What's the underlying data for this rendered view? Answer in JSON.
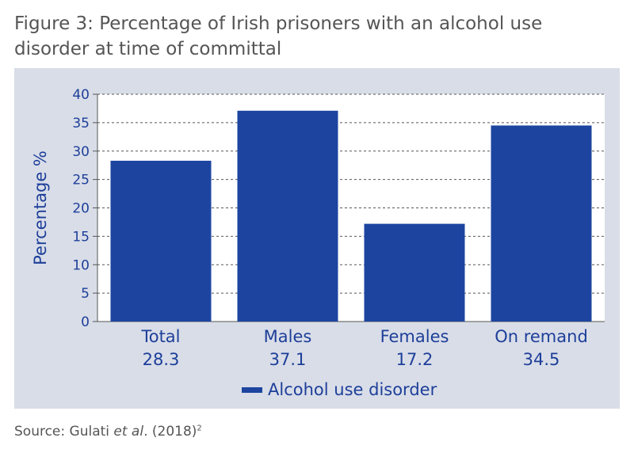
{
  "figure": {
    "title": "Figure 3: Percentage of Irish prisoners with an alcohol use disorder at time of committal"
  },
  "chart_data": {
    "type": "bar",
    "title": "Figure 3: Percentage of Irish prisoners with an alcohol use disorder at time of committal",
    "categories": [
      "Total",
      "Males",
      "Females",
      "On remand"
    ],
    "series": [
      {
        "name": "Alcohol use disorder",
        "values": [
          28.3,
          37.1,
          17.2,
          34.5
        ]
      }
    ],
    "value_labels": [
      "28.3",
      "37.1",
      "17.2",
      "34.5"
    ],
    "xlabel": "",
    "ylabel": "Percentage %",
    "ylim": [
      0,
      40
    ],
    "yticks": [
      0,
      5,
      10,
      15,
      20,
      25,
      30,
      35,
      40
    ],
    "grid": "horizontal dashed",
    "legend": "bottom",
    "colors": {
      "bar": "#1d45a0",
      "text": "#1d3f99",
      "panel": "#d9dde8"
    }
  },
  "source": {
    "prefix": "Source: Gulati ",
    "italic": "et al",
    "suffix": ". (2018)",
    "superscript": "2"
  }
}
